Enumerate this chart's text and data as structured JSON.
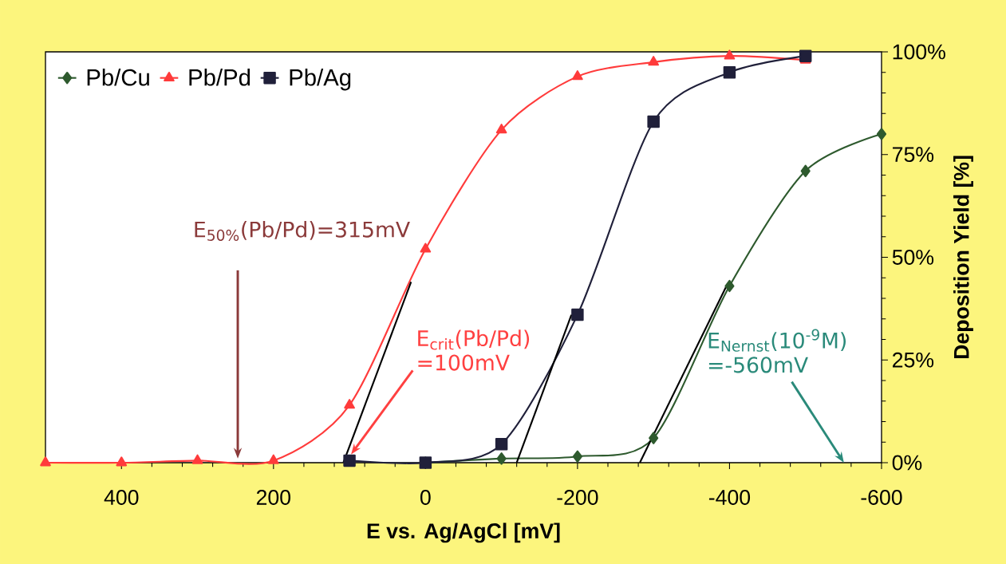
{
  "chart_data": {
    "type": "line",
    "xlabel": "E vs. Ag/AgCl [mV]",
    "ylabel": "Deposition Yield [%]",
    "xlim": [
      500,
      -600
    ],
    "xticks": [
      400,
      200,
      0,
      -200,
      -400,
      -600
    ],
    "ylim": [
      0,
      100
    ],
    "yticks": [
      {
        "value": 0,
        "label": "0%"
      },
      {
        "value": 25,
        "label": "25%"
      },
      {
        "value": 50,
        "label": "50%"
      },
      {
        "value": 75,
        "label": "75%"
      },
      {
        "value": 100,
        "label": "100%"
      }
    ],
    "legend": "top left",
    "grid": false,
    "series": [
      {
        "name": "Pb/Cu",
        "color": "#2e5a2e",
        "marker": "diamond",
        "x": [
          0,
          -100,
          -200,
          -300,
          -400,
          -500,
          -600
        ],
        "values": [
          0,
          1,
          1.5,
          6,
          43,
          71,
          80
        ]
      },
      {
        "name": "Pb/Pd",
        "color": "#ff3b3b",
        "marker": "triangle",
        "x": [
          500,
          400,
          300,
          200,
          100,
          0,
          -100,
          -200,
          -300,
          -400,
          -500
        ],
        "values": [
          0,
          0,
          0.5,
          0.5,
          14,
          52,
          81,
          94,
          97.5,
          99,
          98
        ]
      },
      {
        "name": "Pb/Ag",
        "color": "#20203a",
        "marker": "square",
        "x": [
          100,
          0,
          -100,
          -200,
          -300,
          -400,
          -500
        ],
        "values": [
          0.5,
          0,
          4.5,
          36,
          83,
          95,
          99
        ]
      },
      {
        "color": "#000000",
        "marker": "none",
        "x": [
          108,
          19
        ],
        "values": [
          0,
          44
        ]
      },
      {
        "color": "#000000",
        "marker": "none",
        "x": [
          -120,
          -192
        ],
        "values": [
          0,
          36
        ]
      },
      {
        "color": "#000000",
        "marker": "none",
        "x": [
          -282,
          -396
        ],
        "values": [
          0,
          43
        ]
      }
    ],
    "annotations": [
      "E$_{50%}$(Pb/Pd)=315mV",
      {
        "text": "E$_{crit}$(Pb/Pd) =100mV",
        "x": 98,
        "y": 2
      },
      "E$_{Nernst}$(10$^{-9}$M) =-560mV"
    ]
  }
}
